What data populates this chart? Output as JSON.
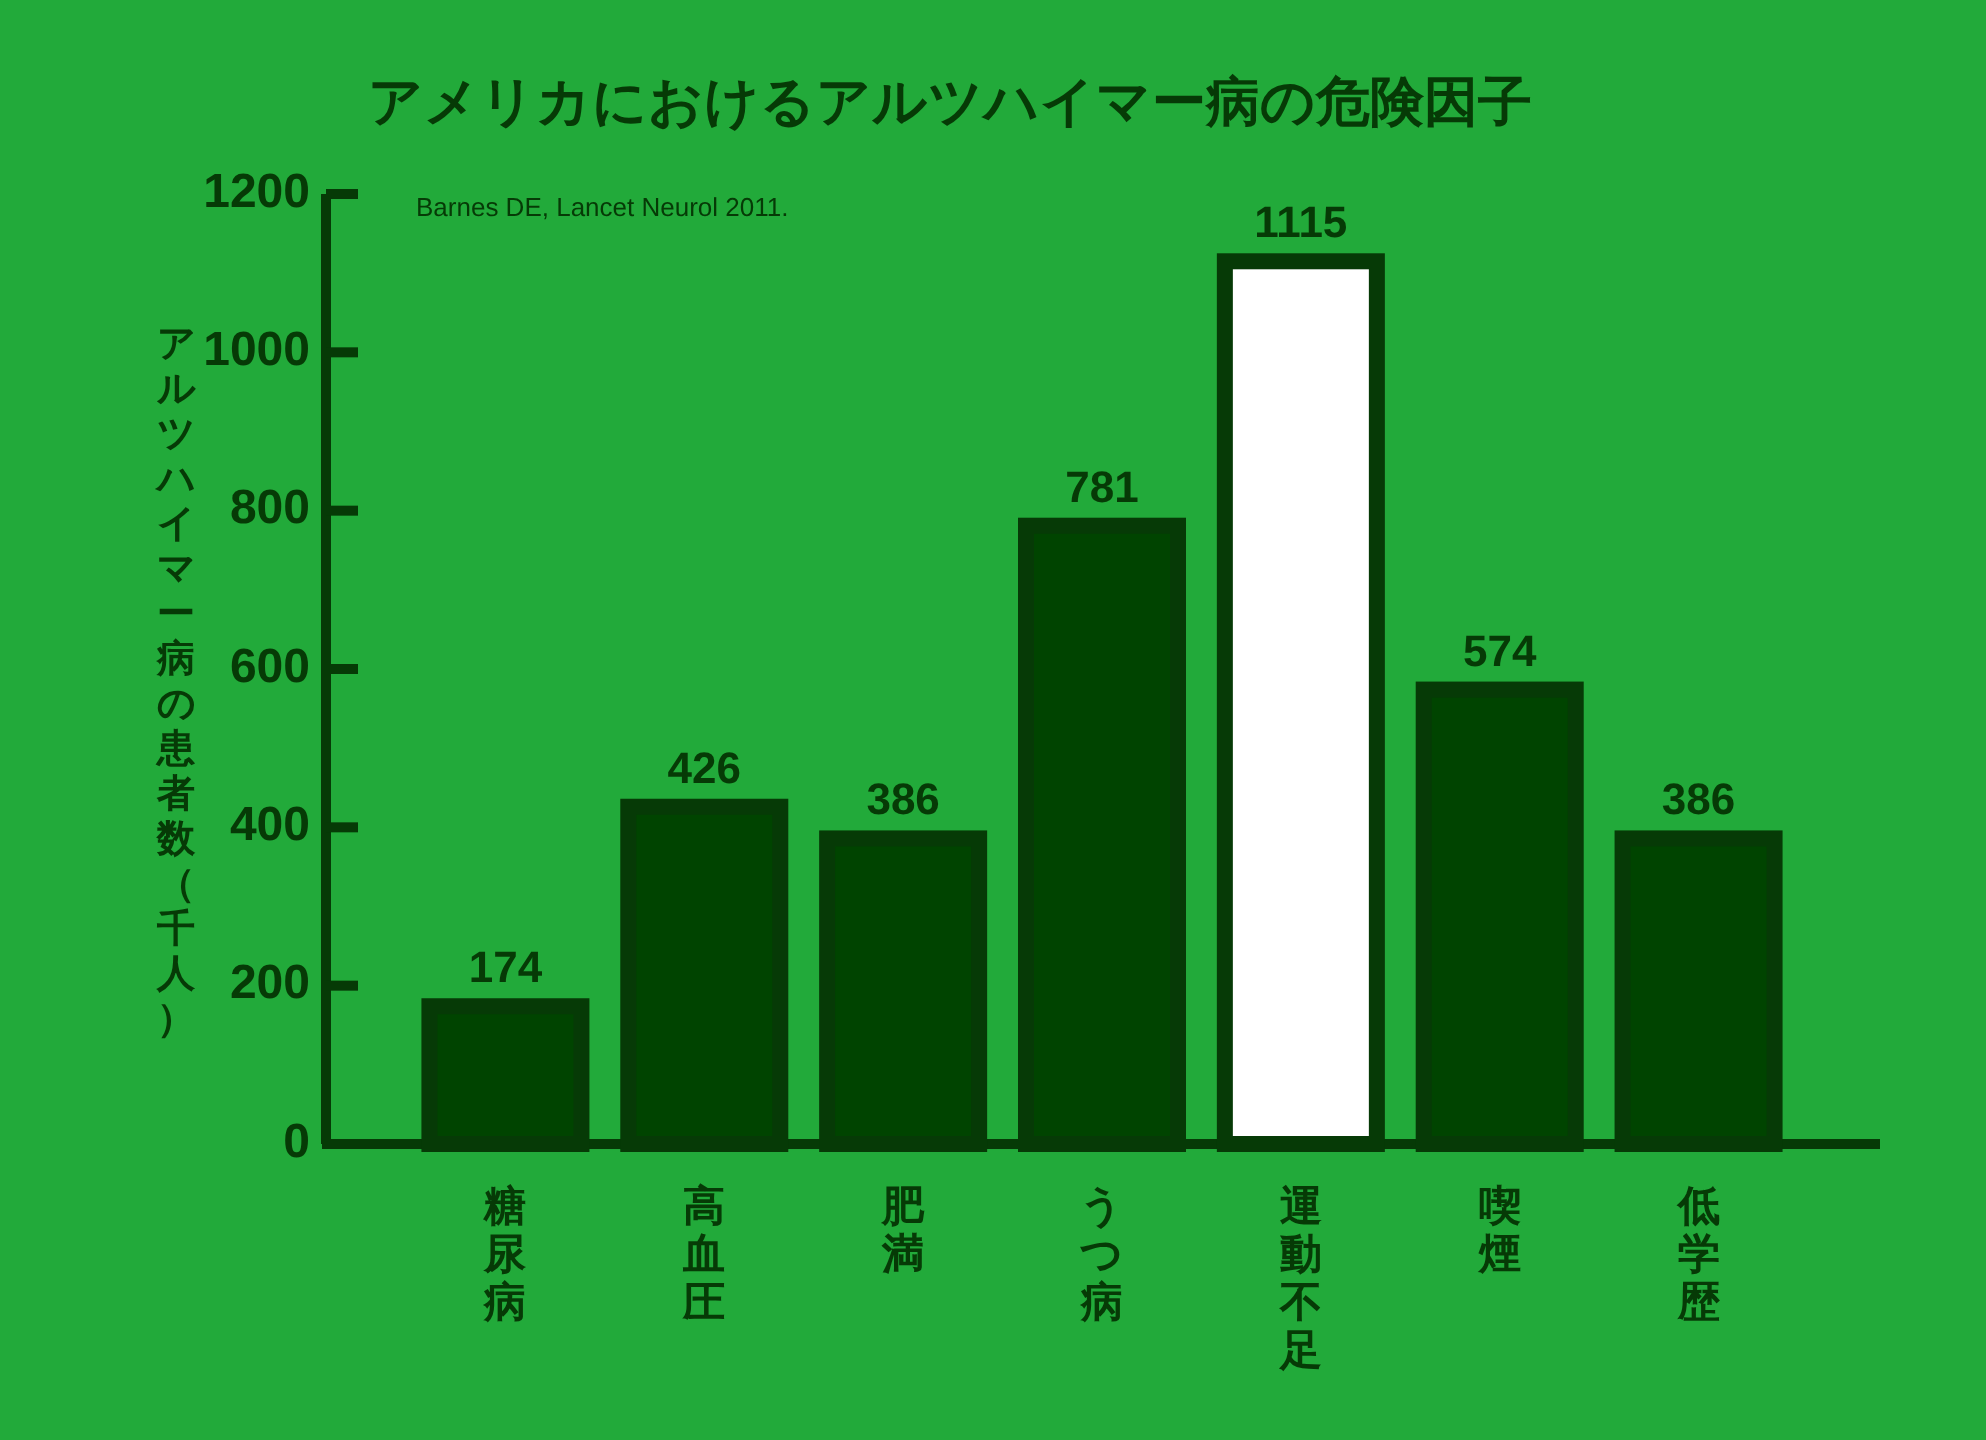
{
  "chart_data": {
    "type": "bar",
    "title": "アメリカにおけるアルツハイマー病の危険因子",
    "ylabel": "アルツハイマー病の患者数（千人）",
    "categories": [
      "糖尿病",
      "高血圧",
      "肥満",
      "うつ病",
      "運動不足",
      "喫煙",
      "低学歴"
    ],
    "values": [
      174,
      426,
      386,
      781,
      1115,
      574,
      386
    ],
    "colors": [
      "#004400",
      "#004400",
      "#004400",
      "#004400",
      "#ffffff",
      "#004400",
      "#004400"
    ],
    "ylim": [
      0,
      1200
    ],
    "yticks": [
      0,
      200,
      400,
      600,
      800,
      1000,
      1200
    ],
    "data_labels": true,
    "grid": false,
    "annotations": [
      "Barnes DE, Lancet Neurol 2011."
    ]
  }
}
